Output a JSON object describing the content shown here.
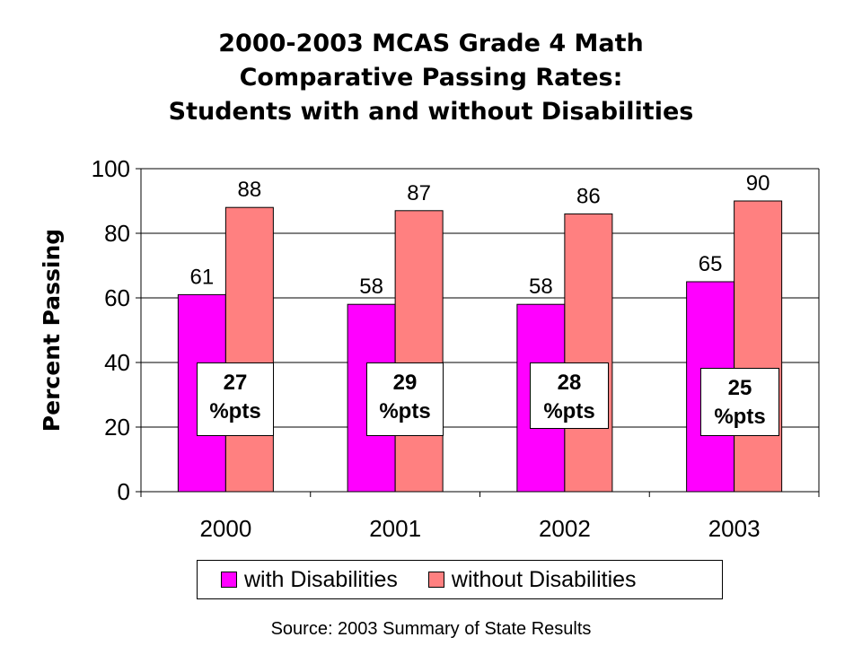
{
  "title_lines": [
    "2000-2003 MCAS Grade 4 Math",
    "Comparative Passing Rates:",
    "Students with and without Disabilities"
  ],
  "source": "Source: 2003 Summary of State Results",
  "colors": {
    "with_disabilities": "#ff00ff",
    "without_disabilities": "#ff8080",
    "gridline": "#000000",
    "background": "#ffffff"
  },
  "callouts": [
    {
      "value": "27",
      "unit": "%pts"
    },
    {
      "value": "29",
      "unit": "%pts"
    },
    {
      "value": "28",
      "unit": "%pts"
    },
    {
      "value": "25",
      "unit": "%pts"
    }
  ],
  "chart_data": {
    "type": "bar",
    "title": "2000-2003 MCAS Grade 4 Math Comparative Passing Rates: Students with and without Disabilities",
    "xlabel": "",
    "ylabel": "Percent Passing",
    "categories": [
      "2000",
      "2001",
      "2002",
      "2003"
    ],
    "series": [
      {
        "name": "with Disabilities",
        "values": [
          61,
          58,
          58,
          65
        ]
      },
      {
        "name": "without Disabilities",
        "values": [
          88,
          87,
          86,
          90
        ]
      }
    ],
    "ylim": [
      0,
      100
    ],
    "yticks": [
      0,
      20,
      40,
      60,
      80,
      100
    ],
    "grid": true,
    "legend": "bottom",
    "data_labels": true
  }
}
